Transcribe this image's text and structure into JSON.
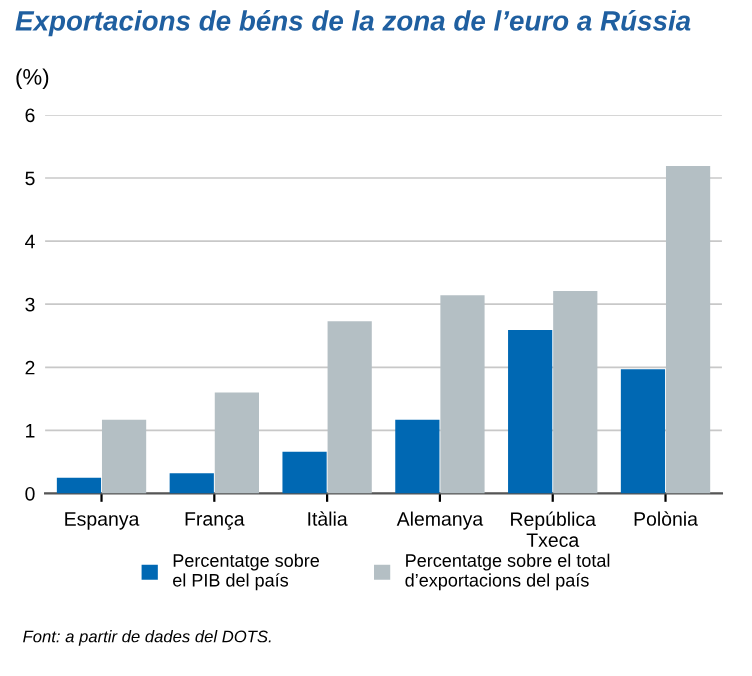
{
  "chart_data": {
    "type": "bar",
    "title": "Exportacions de béns de la zona de l’euro a Rússia",
    "ylabel": "(%)",
    "categories": [
      "Espanya",
      "França",
      "Itàlia",
      "Alemanya",
      "República\nTxeca",
      "Polònia"
    ],
    "series": [
      {
        "name": "Percentatge sobre\nel PIB del país",
        "color": "#0068b3",
        "values": [
          0.25,
          0.32,
          0.66,
          1.17,
          2.59,
          1.97
        ]
      },
      {
        "name": "Percentatge sobre el total\nd’exportacions del país",
        "color": "#b4bfc4",
        "values": [
          1.17,
          1.6,
          2.73,
          3.14,
          3.21,
          5.19
        ]
      }
    ],
    "ylim": [
      0,
      6
    ],
    "yticks": [
      0,
      1,
      2,
      3,
      4,
      5,
      6
    ],
    "grid": "y",
    "legend": "bottom",
    "annotations": [
      "Font: a partir de dades del DOTS."
    ]
  }
}
